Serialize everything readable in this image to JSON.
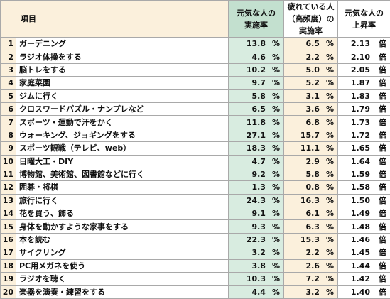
{
  "headers": {
    "item": "項目",
    "energetic_rate": [
      "元気な人の",
      "実施率"
    ],
    "tired_rate": [
      "疲れている人",
      "（高頻度）の",
      "実施率"
    ],
    "lift": [
      "元気な人の",
      "上昇率"
    ]
  },
  "units": {
    "rate": "%",
    "lift": "倍"
  },
  "rows": [
    {
      "no": "1",
      "item": "ガーデニング",
      "energetic": "13.8",
      "tired": "6.5",
      "lift": "2.13"
    },
    {
      "no": "2",
      "item": "ラジオ体操をする",
      "energetic": "4.6",
      "tired": "2.2",
      "lift": "2.10"
    },
    {
      "no": "3",
      "item": "脳トレをする",
      "energetic": "10.2",
      "tired": "5.0",
      "lift": "2.05"
    },
    {
      "no": "4",
      "item": "家庭菜園",
      "energetic": "9.7",
      "tired": "5.2",
      "lift": "1.87"
    },
    {
      "no": "5",
      "item": "ジムに行く",
      "energetic": "5.8",
      "tired": "3.1",
      "lift": "1.83"
    },
    {
      "no": "6",
      "item": "クロスワードパズル・ナンプレなど",
      "energetic": "6.5",
      "tired": "3.6",
      "lift": "1.79"
    },
    {
      "no": "7",
      "item": "スポーツ・運動で汗をかく",
      "energetic": "11.8",
      "tired": "6.8",
      "lift": "1.73"
    },
    {
      "no": "8",
      "item": "ウォーキング、ジョギングをする",
      "energetic": "27.1",
      "tired": "15.7",
      "lift": "1.72"
    },
    {
      "no": "9",
      "item": "スポーツ観戦（テレビ、web）",
      "energetic": "18.3",
      "tired": "11.1",
      "lift": "1.65"
    },
    {
      "no": "10",
      "item": "日曜大工・DIY",
      "energetic": "4.7",
      "tired": "2.9",
      "lift": "1.64"
    },
    {
      "no": "11",
      "item": "博物館、美術館、図書館などに行く",
      "energetic": "9.2",
      "tired": "5.8",
      "lift": "1.59"
    },
    {
      "no": "12",
      "item": "囲碁・将棋",
      "energetic": "1.3",
      "tired": "0.8",
      "lift": "1.58"
    },
    {
      "no": "13",
      "item": "旅行に行く",
      "energetic": "24.3",
      "tired": "16.3",
      "lift": "1.50"
    },
    {
      "no": "14",
      "item": "花を買う、飾る",
      "energetic": "9.1",
      "tired": "6.1",
      "lift": "1.49"
    },
    {
      "no": "15",
      "item": "身体を動かすような家事をする",
      "energetic": "9.3",
      "tired": "6.3",
      "lift": "1.48"
    },
    {
      "no": "16",
      "item": "本を読む",
      "energetic": "22.3",
      "tired": "15.3",
      "lift": "1.46"
    },
    {
      "no": "17",
      "item": "サイクリング",
      "energetic": "3.2",
      "tired": "2.2",
      "lift": "1.45"
    },
    {
      "no": "18",
      "item": "PC用メガネを使う",
      "energetic": "3.8",
      "tired": "2.6",
      "lift": "1.44"
    },
    {
      "no": "19",
      "item": "ラジオを聴く",
      "energetic": "10.3",
      "tired": "7.2",
      "lift": "1.42"
    },
    {
      "no": "20",
      "item": "楽器を演奏・練習をする",
      "energetic": "4.4",
      "tired": "3.2",
      "lift": "1.40"
    }
  ],
  "colors": {
    "header_cream": "#fbf0dc",
    "header_green": "#c3e0cf",
    "col_green": "#d8ece0",
    "col_cream": "#fbf0dc",
    "border": "#a9a9a9"
  }
}
